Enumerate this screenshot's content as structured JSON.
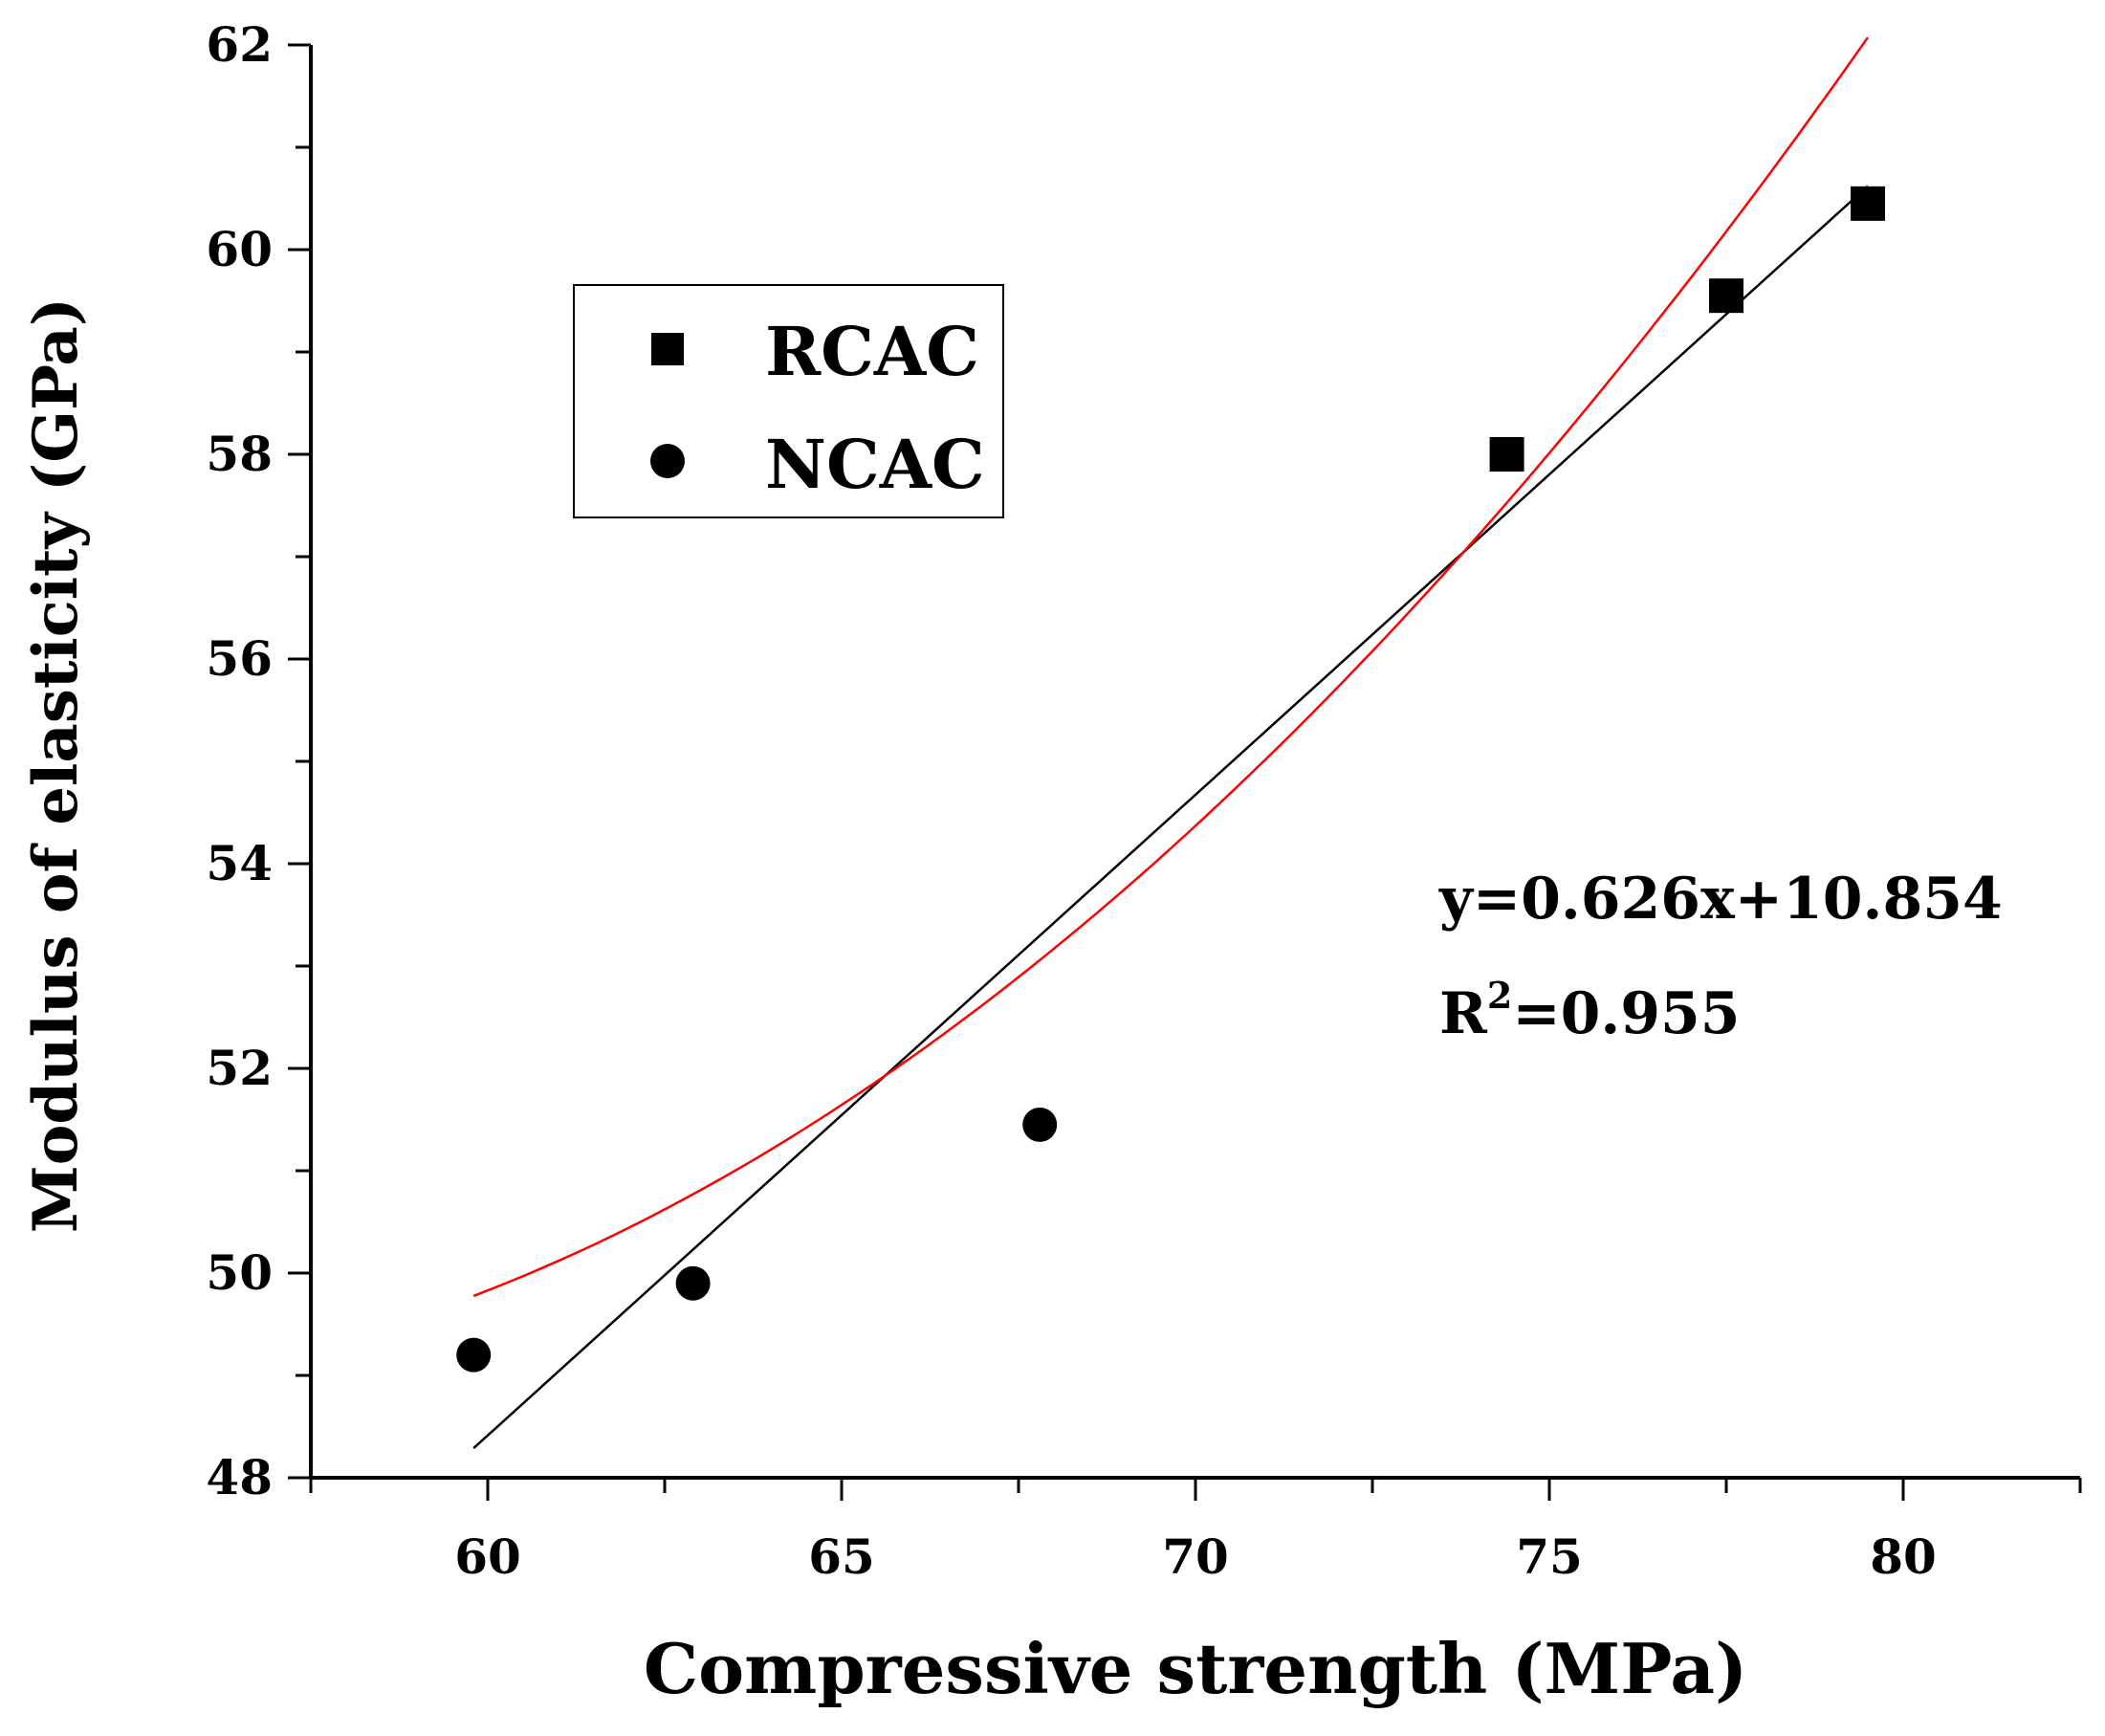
{
  "chart_data": {
    "type": "scatter",
    "title": "",
    "xlabel": "Compressive strength (MPa)",
    "ylabel": "Modulus of elasticity (GPa)",
    "xlim": [
      57.5,
      82.5
    ],
    "ylim": [
      48,
      62
    ],
    "x_ticks": [
      60,
      65,
      70,
      75,
      80
    ],
    "y_ticks": [
      48,
      50,
      52,
      54,
      56,
      58,
      60,
      62
    ],
    "x_minor_step": 2.5,
    "y_minor_step": 1,
    "series": [
      {
        "name": "RCAC",
        "marker": "square",
        "points": [
          [
            74.4,
            58.0
          ],
          [
            77.5,
            59.55
          ],
          [
            79.5,
            60.45
          ]
        ]
      },
      {
        "name": "NCAC",
        "marker": "circle",
        "points": [
          [
            59.8,
            49.2
          ],
          [
            62.9,
            49.9
          ],
          [
            67.8,
            51.45
          ]
        ]
      }
    ],
    "fits": [
      {
        "name": "linear-fit",
        "kind": "linear",
        "slope": 0.626,
        "intercept": 10.854,
        "x_range": [
          59.8,
          79.5
        ],
        "color": "#000000"
      },
      {
        "name": "quadratic-fit",
        "kind": "quadratic",
        "coefficients": [
          0.0183,
          -1.925,
          99.45
        ],
        "x_range": [
          59.8,
          79.5
        ],
        "color": "#ff0000"
      }
    ],
    "annotations": {
      "equation": "y=0.626x+10.854",
      "r2_base": "R",
      "r2_sup": "2",
      "r2_rest": "=0.955"
    },
    "legend": {
      "position": "top-left",
      "entries": [
        "RCAC",
        "NCAC"
      ]
    }
  }
}
